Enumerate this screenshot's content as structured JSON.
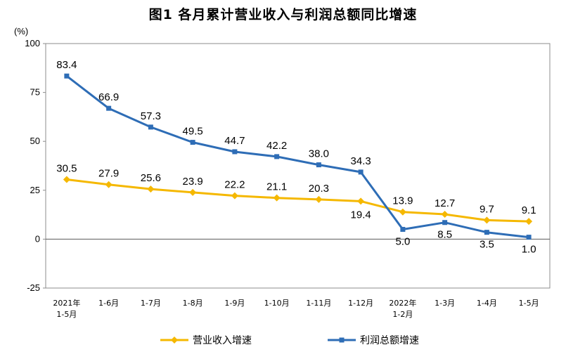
{
  "title": "图1  各月累计营业收入与利润总额同比增速",
  "chart_data": {
    "type": "line",
    "title": "图1  各月累计营业收入与利润总额同比增速",
    "ylabel": "(%)",
    "ylim": [
      -25,
      100
    ],
    "yticks": [
      -25,
      0,
      25,
      50,
      75,
      100
    ],
    "categories": [
      [
        "2021年",
        "1-5月"
      ],
      [
        "1-6月"
      ],
      [
        "1-7月"
      ],
      [
        "1-8月"
      ],
      [
        "1-9月"
      ],
      [
        "1-10月"
      ],
      [
        "1-11月"
      ],
      [
        "1-12月"
      ],
      [
        "2022年",
        "1-2月"
      ],
      [
        "1-3月"
      ],
      [
        "1-4月"
      ],
      [
        "1-5月"
      ]
    ],
    "series": [
      {
        "name": "营业收入增速",
        "color": "#F5B800",
        "marker": "diamond",
        "values": [
          30.5,
          27.9,
          25.6,
          23.9,
          22.2,
          21.1,
          20.3,
          19.4,
          13.9,
          12.7,
          9.7,
          9.1
        ],
        "labels": [
          "30.5",
          "27.9",
          "25.6",
          "23.9",
          "22.2",
          "21.1",
          "20.3",
          "19.4",
          "13.9",
          "12.7",
          "9.7",
          "9.1"
        ]
      },
      {
        "name": "利润总额增速",
        "color": "#2E6DB6",
        "marker": "square",
        "values": [
          83.4,
          66.9,
          57.3,
          49.5,
          44.7,
          42.2,
          38.0,
          34.3,
          5.0,
          8.5,
          3.5,
          1.0
        ],
        "labels": [
          "83.4",
          "66.9",
          "57.3",
          "49.5",
          "44.7",
          "42.2",
          "38.0",
          "34.3",
          "5.0",
          "8.5",
          "3.5",
          "1.0"
        ]
      }
    ],
    "grid": false,
    "legend": "bottom"
  }
}
